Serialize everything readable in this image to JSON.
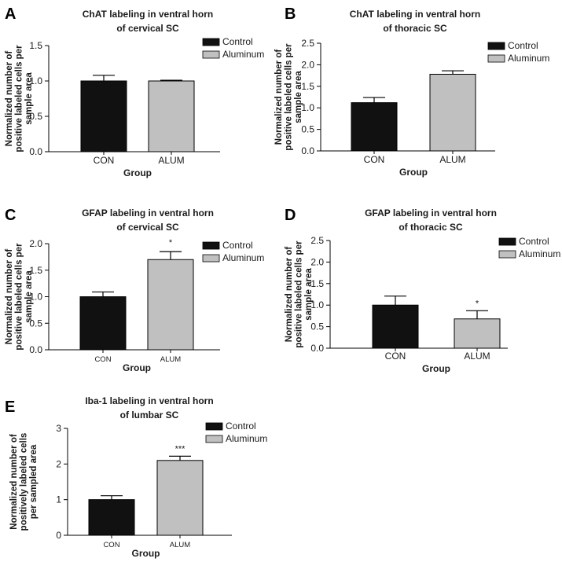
{
  "chart_data": [
    {
      "panel": "A",
      "type": "bar",
      "title": [
        "ChAT labeling in ventral horn",
        "of cervical SC"
      ],
      "ylabel": [
        "Normalized number of",
        "positive labeled cells per",
        "sample area"
      ],
      "xlabel": "Group",
      "categories": [
        "CON",
        "ALUM"
      ],
      "values": [
        1.0,
        1.0
      ],
      "errors": [
        0.08,
        0.01
      ],
      "colors": [
        "#111111",
        "#c0c0c0"
      ],
      "significance": [
        "",
        ""
      ],
      "ylim": [
        0,
        1.5
      ],
      "yticks": [
        "0.0",
        "0.5",
        "1.0",
        "1.5"
      ],
      "legend": [
        {
          "label": "Control",
          "color": "#111111"
        },
        {
          "label": "Aluminum",
          "color": "#c0c0c0"
        }
      ],
      "legend_position": "top-right"
    },
    {
      "panel": "B",
      "type": "bar",
      "title": [
        "ChAT labeling in ventral horn",
        "of thoracic SC"
      ],
      "ylabel": [
        "Normalized number of",
        "positive labeled cells per",
        "sample area"
      ],
      "xlabel": "Group",
      "categories": [
        "CON",
        "ALUM"
      ],
      "values": [
        1.12,
        1.78
      ],
      "errors": [
        0.12,
        0.08
      ],
      "colors": [
        "#111111",
        "#c0c0c0"
      ],
      "significance": [
        "",
        ""
      ],
      "ylim": [
        0,
        2.5
      ],
      "yticks": [
        "0.0",
        "0.5",
        "1.0",
        "1.5",
        "2.0",
        "2.5"
      ],
      "legend": [
        {
          "label": "Control",
          "color": "#111111"
        },
        {
          "label": "Aluminum",
          "color": "#c0c0c0"
        }
      ],
      "legend_position": "top-right"
    },
    {
      "panel": "C",
      "type": "bar",
      "title": [
        "GFAP labeling in ventral horn",
        "of cervical SC"
      ],
      "ylabel": [
        "Normalized number of",
        "positive labeled cells per",
        "sample area"
      ],
      "xlabel": "Group",
      "categories": [
        "CON",
        "ALUM"
      ],
      "values": [
        1.0,
        1.7
      ],
      "errors": [
        0.09,
        0.15
      ],
      "colors": [
        "#111111",
        "#c0c0c0"
      ],
      "significance": [
        "",
        "*"
      ],
      "ylim": [
        0,
        2.0
      ],
      "yticks": [
        "0.0",
        "0.5",
        "1.0",
        "1.5",
        "2.0"
      ],
      "legend": [
        {
          "label": "Control",
          "color": "#111111"
        },
        {
          "label": "Aluminum",
          "color": "#c0c0c0"
        }
      ],
      "legend_position": "top-right"
    },
    {
      "panel": "D",
      "type": "bar",
      "title": [
        "GFAP labeling in ventral horn",
        "of thoracic SC"
      ],
      "ylabel": [
        "Normalized number of",
        "positive labeled cells per",
        "sample area"
      ],
      "xlabel": "Group",
      "categories": [
        "CON",
        "ALUM"
      ],
      "values": [
        1.0,
        0.68
      ],
      "errors": [
        0.21,
        0.19
      ],
      "colors": [
        "#111111",
        "#c0c0c0"
      ],
      "significance": [
        "",
        "*"
      ],
      "ylim": [
        0,
        2.5
      ],
      "yticks": [
        "0.0",
        "0.5",
        "1.0",
        "1.5",
        "2.0",
        "2.5"
      ],
      "legend": [
        {
          "label": "Control",
          "color": "#111111"
        },
        {
          "label": "Aluminum",
          "color": "#c0c0c0"
        }
      ],
      "legend_position": "top-right"
    },
    {
      "panel": "E",
      "type": "bar",
      "title": [
        "Iba-1 labeling in ventral horn",
        "of lumbar SC"
      ],
      "ylabel": [
        "Normalized number of",
        "positively labeled cells",
        "per sampled area"
      ],
      "xlabel": "Group",
      "categories": [
        "CON",
        "ALUM"
      ],
      "values": [
        1.0,
        2.1
      ],
      "errors": [
        0.11,
        0.12
      ],
      "colors": [
        "#111111",
        "#c0c0c0"
      ],
      "significance": [
        "",
        "***"
      ],
      "ylim": [
        0,
        3
      ],
      "yticks": [
        "0",
        "1",
        "2",
        "3"
      ],
      "legend": [
        {
          "label": "Control",
          "color": "#111111"
        },
        {
          "label": "Aluminum",
          "color": "#c0c0c0"
        }
      ],
      "legend_position": "top-right"
    }
  ]
}
